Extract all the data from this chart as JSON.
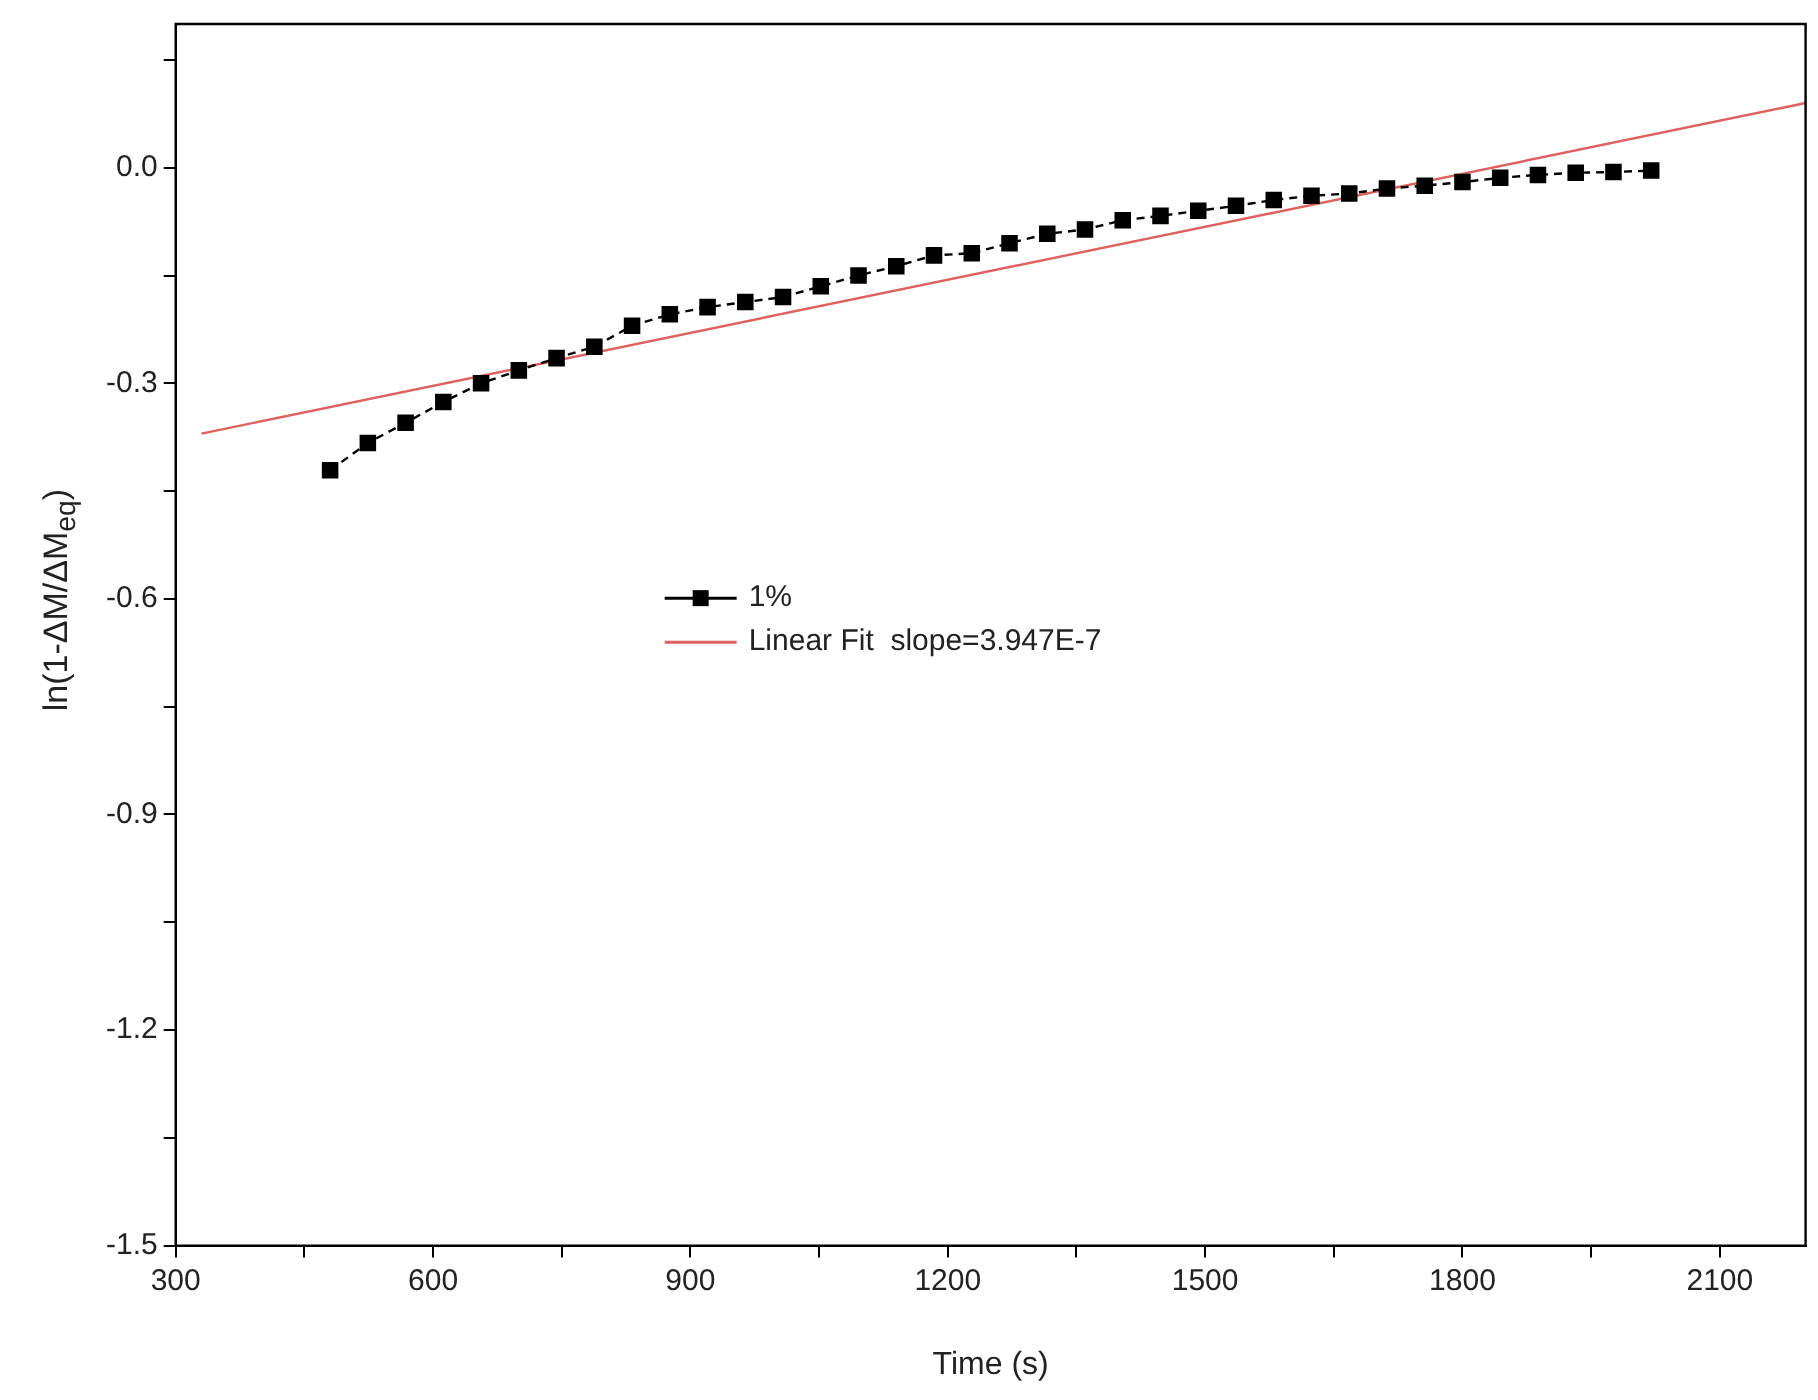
{
  "chart_data": {
    "type": "line",
    "xlabel": "Time (s)",
    "ylabel": "ln(1-ΔM/ΔM$_{eq}$)",
    "xlim": [
      300,
      2200
    ],
    "xticks": [
      300,
      {
        "value": 450,
        "label": null
      },
      600,
      {
        "value": 750,
        "label": null
      },
      900,
      {
        "value": 1050,
        "label": null
      },
      1200,
      {
        "value": 1350,
        "label": null
      },
      1500,
      {
        "value": 1650,
        "label": null
      },
      1800,
      {
        "value": 1950,
        "label": null
      },
      2100
    ],
    "ylim": [
      -1.5,
      0.2
    ],
    "yticks": [
      {
        "value": -1.5,
        "label": "-1.5"
      },
      {
        "value": -1.35,
        "label": null
      },
      {
        "value": -1.2,
        "label": "-1.2"
      },
      {
        "value": -1.05,
        "label": null
      },
      {
        "value": -0.9,
        "label": "-0.9"
      },
      {
        "value": -0.75,
        "label": null
      },
      {
        "value": -0.6,
        "label": "-0.6"
      },
      {
        "value": -0.45,
        "label": null
      },
      {
        "value": -0.3,
        "label": "-0.3"
      },
      {
        "value": -0.15,
        "label": null
      },
      {
        "value": 0,
        "label": "0.0"
      },
      {
        "value": 0.15,
        "label": null
      }
    ],
    "legend": "center",
    "grid": false,
    "series": [
      {
        "name": "1%",
        "color": "#000000",
        "marker": "square",
        "line_style": "dashed",
        "x": [
          480,
          524,
          568,
          612,
          656,
          700,
          744,
          788,
          832,
          876,
          920,
          964,
          1008,
          1052,
          1096,
          1140,
          1184,
          1228,
          1272,
          1316,
          1360,
          1404,
          1448,
          1492,
          1536,
          1580,
          1624,
          1668,
          1712,
          1756,
          1800,
          1844,
          1888,
          1932,
          1976,
          2020
        ],
        "values": [
          -0.421,
          -0.383,
          -0.355,
          -0.326,
          -0.3,
          -0.282,
          -0.265,
          -0.249,
          -0.22,
          -0.204,
          -0.194,
          -0.187,
          -0.18,
          -0.165,
          -0.15,
          -0.137,
          -0.122,
          -0.119,
          -0.105,
          -0.092,
          -0.086,
          -0.073,
          -0.067,
          -0.06,
          -0.053,
          -0.045,
          -0.039,
          -0.036,
          -0.029,
          -0.025,
          -0.02,
          -0.014,
          -0.01,
          -0.007,
          -0.006,
          -0.004
        ]
      },
      {
        "name": "Linear Fit  slope=3.947E-7",
        "color": "#e06060",
        "marker": "none",
        "line_style": "solid",
        "x": [
          330,
          2200
        ],
        "values": [
          -0.37,
          0.09
        ]
      }
    ]
  }
}
